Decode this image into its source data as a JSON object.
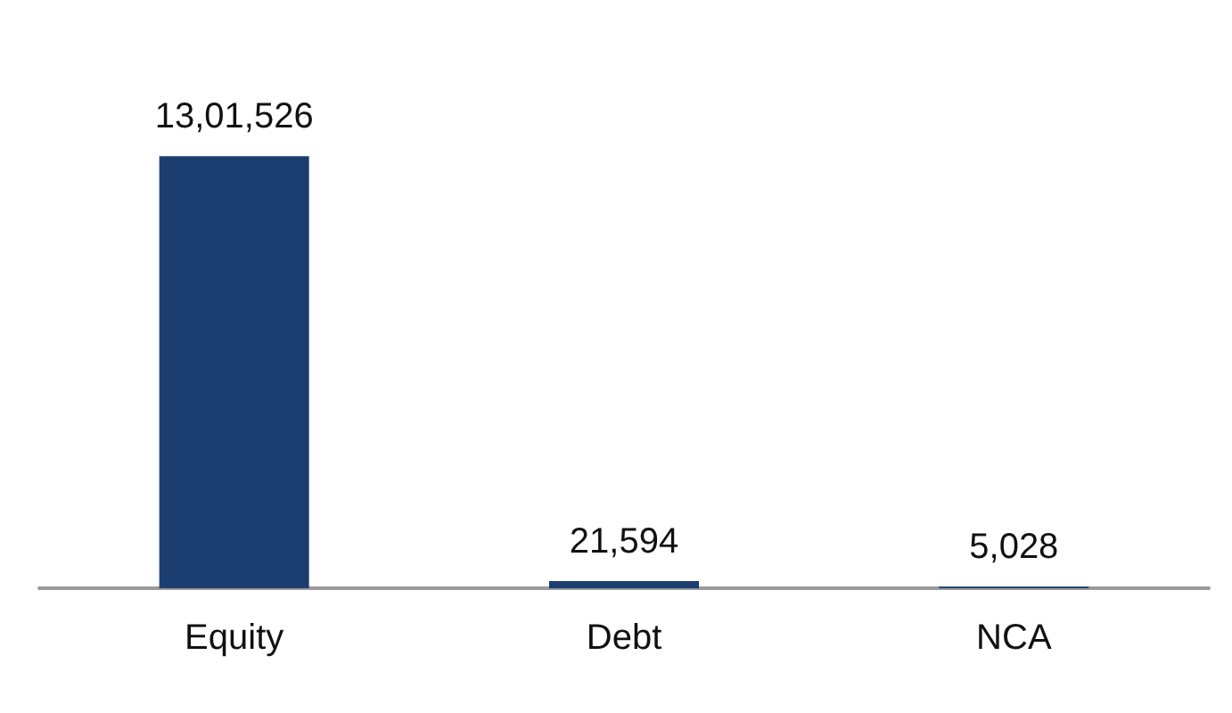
{
  "chart_data": {
    "type": "bar",
    "categories": [
      "Equity",
      "Debt",
      "NCA"
    ],
    "values": [
      1301526,
      21594,
      5028
    ],
    "value_labels": [
      "13,01,526",
      "21,594",
      "5,028"
    ],
    "color": "#1b3d6f"
  }
}
